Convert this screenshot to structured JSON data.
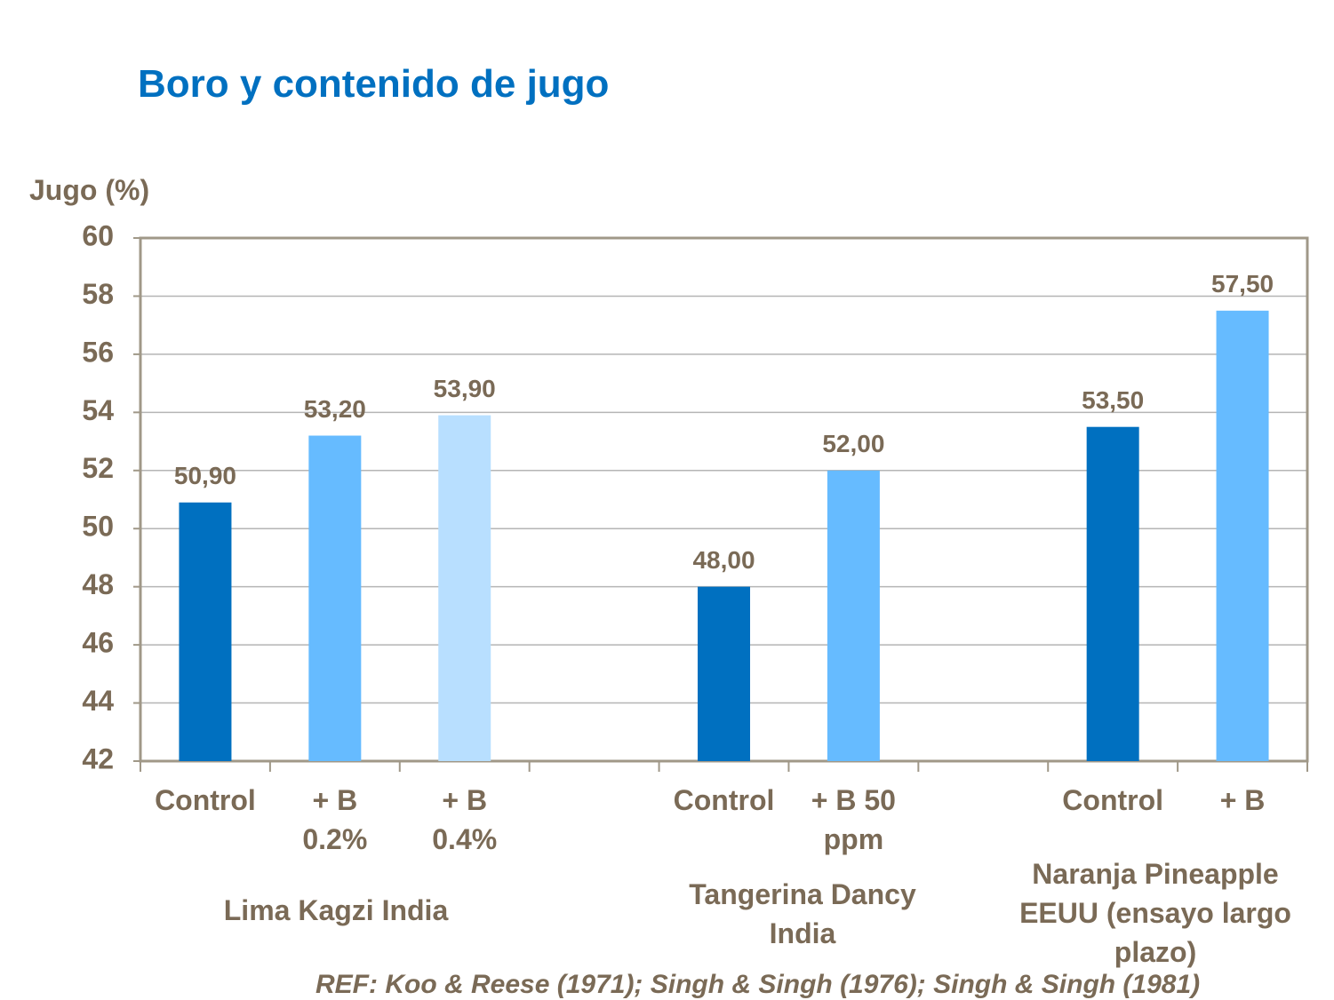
{
  "chart_data": {
    "type": "bar",
    "title": "Boro y contenido de jugo",
    "y_label": "Jugo (%)",
    "categories": [
      "Control",
      "+ B 0.2%",
      "+ B 0.4%",
      null,
      "Control",
      "+ B 50 ppm",
      null,
      "Control",
      "+ B"
    ],
    "values": [
      50.9,
      53.2,
      53.9,
      null,
      48.0,
      52.0,
      null,
      53.5,
      57.5
    ],
    "value_labels": [
      "50,90",
      "53,20",
      "53,90",
      null,
      "48,00",
      "52,00",
      null,
      "53,50",
      "57,50"
    ],
    "colors": [
      "#0070c0",
      "#66bbff",
      "#b8dfff",
      null,
      "#0070c0",
      "#66bbff",
      null,
      "#0070c0",
      "#66bbff"
    ],
    "groups": [
      "Lima Kagzi India",
      "Tangerina Dancy India",
      "Naranja Pineapple EEUU (ensayo largo plazo)"
    ],
    "ylim": [
      42,
      60
    ],
    "yticks": [
      42,
      44,
      46,
      48,
      50,
      52,
      54,
      56,
      58,
      60
    ],
    "grid": true,
    "note": "REF: Koo & Reese (1971); Singh & Singh (1976); Singh & Singh (1981)"
  }
}
